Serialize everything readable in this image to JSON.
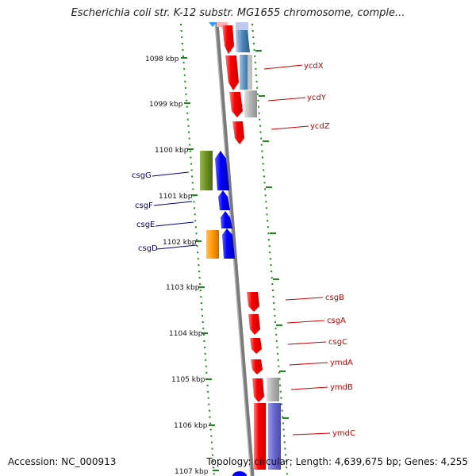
{
  "title": "Escherichia coli str. K-12 substr. MG1655 chromosome, comple...",
  "footer": {
    "accession": "Accession: NC_000913",
    "summary": "Topology: circular; Length: 4,639,675 bp; Genes: 4,255"
  },
  "colors": {
    "forward": "#ff0000",
    "reverse": "#0000ff",
    "backbone": "#888888",
    "tick": "#1a8a1a",
    "label_forward": "#cc0000",
    "label_reverse": "#00008b",
    "cds_green": "#6b8e23",
    "cds_orange": "#ff9900",
    "cds_gray": "#b0b0b0",
    "cds_purple": "#6666cc",
    "cds_steel": "#4682b4"
  },
  "kbp_labels": [
    "1098 kbp",
    "1099 kbp",
    "1100 kbp",
    "1101 kbp",
    "1102 kbp",
    "1103 kbp",
    "1104 kbp",
    "1105 kbp",
    "1106 kbp",
    "1107 kbp"
  ],
  "genes": [
    {
      "name": "ycdX",
      "strand": "+"
    },
    {
      "name": "ycdY",
      "strand": "+"
    },
    {
      "name": "ycdZ",
      "strand": "+"
    },
    {
      "name": "csgG",
      "strand": "-"
    },
    {
      "name": "csgF",
      "strand": "-"
    },
    {
      "name": "csgE",
      "strand": "-"
    },
    {
      "name": "csgD",
      "strand": "-"
    },
    {
      "name": "csgB",
      "strand": "+"
    },
    {
      "name": "csgA",
      "strand": "+"
    },
    {
      "name": "csgC",
      "strand": "+"
    },
    {
      "name": "ymdA",
      "strand": "+"
    },
    {
      "name": "ymdB",
      "strand": "+"
    },
    {
      "name": "ymdC",
      "strand": "+"
    }
  ]
}
